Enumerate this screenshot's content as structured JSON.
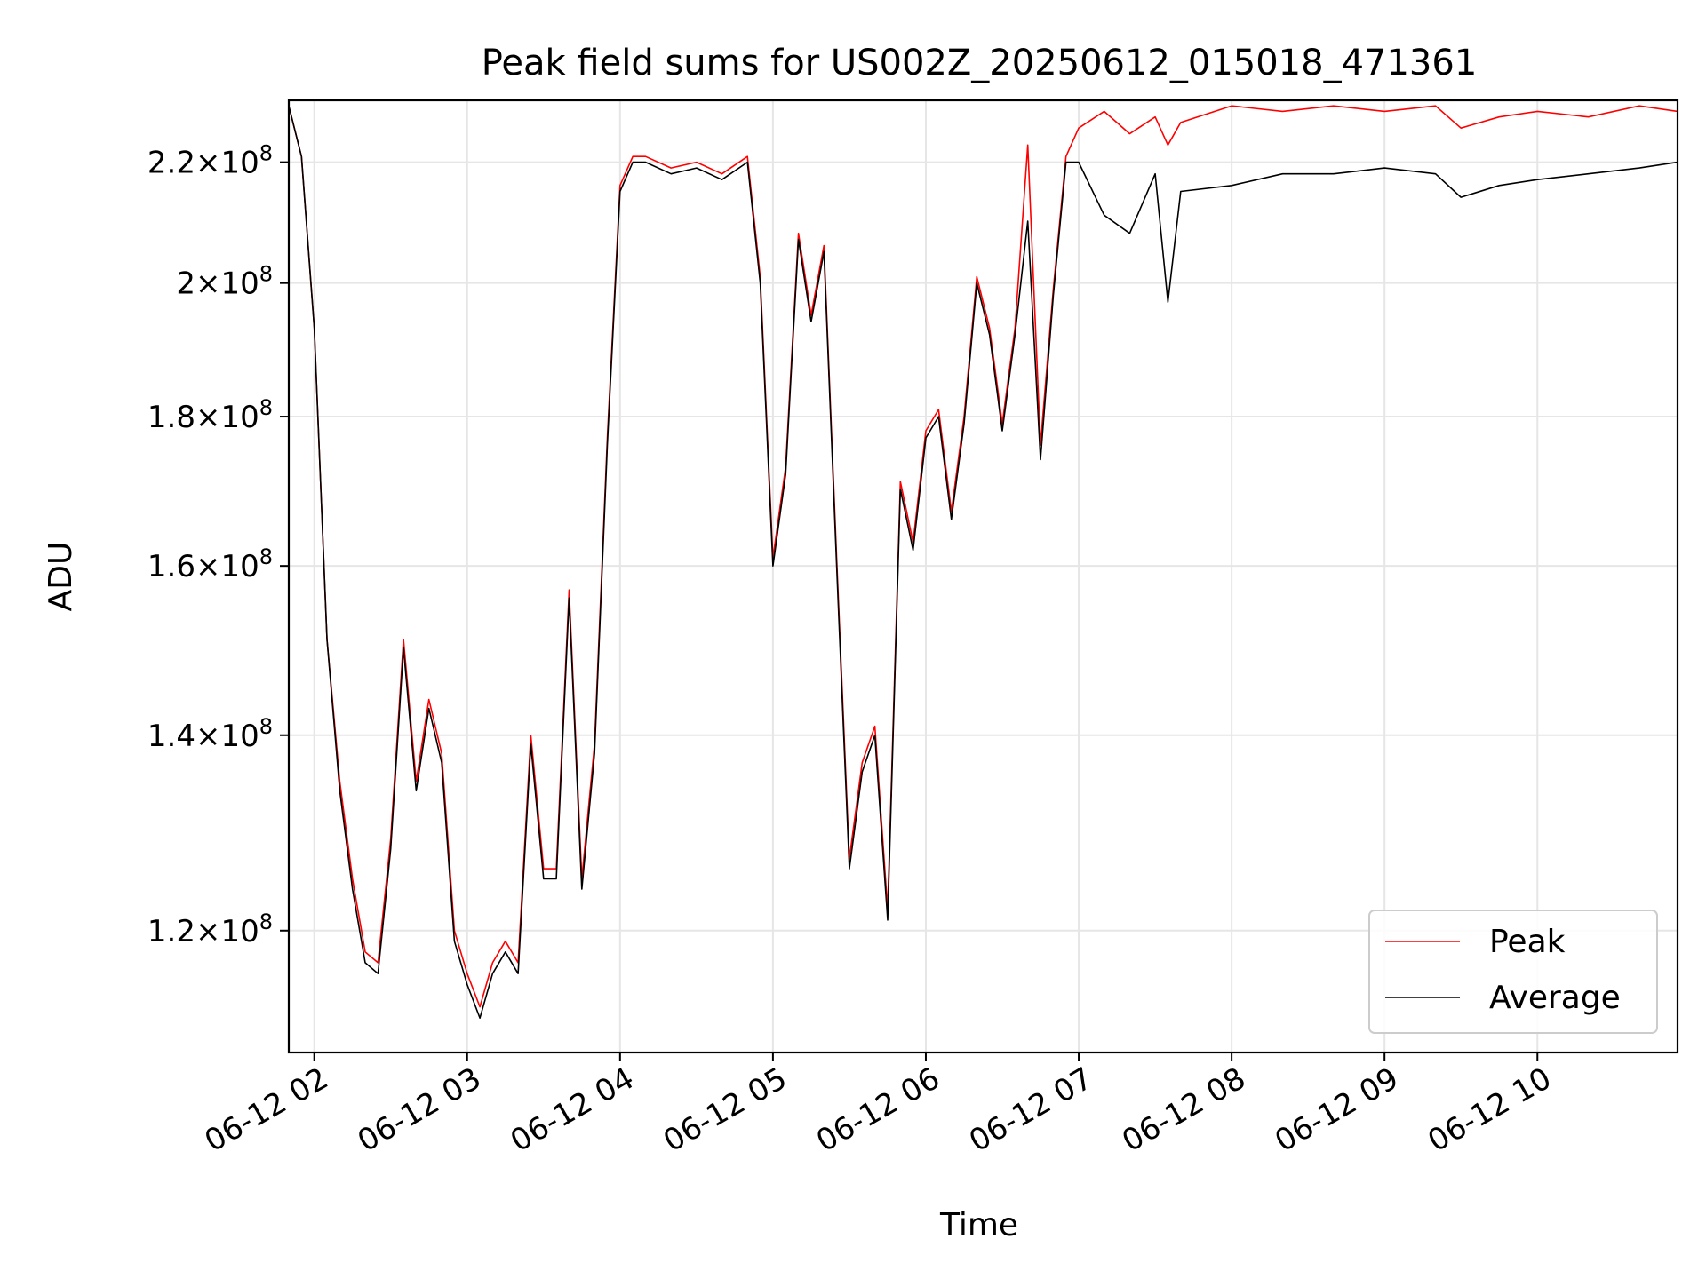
{
  "chart_data": {
    "type": "line",
    "title": "Peak field sums for US002Z_20250612_015018_471361",
    "xlabel": "Time",
    "ylabel": "ADU",
    "yscale": "log",
    "grid": true,
    "legend_position": "lower-right",
    "xlim": [
      "2025-06-12 01:50",
      "2025-06-12 10:55"
    ],
    "ylim": [
      109000000,
      231000000
    ],
    "x_ticks": [
      {
        "value": "2025-06-12 02:00",
        "label": "06-12 02"
      },
      {
        "value": "2025-06-12 03:00",
        "label": "06-12 03"
      },
      {
        "value": "2025-06-12 04:00",
        "label": "06-12 04"
      },
      {
        "value": "2025-06-12 05:00",
        "label": "06-12 05"
      },
      {
        "value": "2025-06-12 06:00",
        "label": "06-12 06"
      },
      {
        "value": "2025-06-12 07:00",
        "label": "06-12 07"
      },
      {
        "value": "2025-06-12 08:00",
        "label": "06-12 08"
      },
      {
        "value": "2025-06-12 09:00",
        "label": "06-12 09"
      },
      {
        "value": "2025-06-12 10:00",
        "label": "06-12 10"
      }
    ],
    "y_ticks": [
      {
        "value": 120000000,
        "mantissa": "1.2",
        "exponent": "8"
      },
      {
        "value": 140000000,
        "mantissa": "1.4",
        "exponent": "8"
      },
      {
        "value": 160000000,
        "mantissa": "1.6",
        "exponent": "8"
      },
      {
        "value": 180000000,
        "mantissa": "1.8",
        "exponent": "8"
      },
      {
        "value": 200000000,
        "mantissa": "2",
        "exponent": "8"
      },
      {
        "value": 220000000,
        "mantissa": "2.2",
        "exponent": "8"
      }
    ],
    "series": [
      {
        "name": "Average",
        "color": "#000000",
        "x": [
          "2025-06-12 01:50",
          "2025-06-12 01:55",
          "2025-06-12 02:00",
          "2025-06-12 02:05",
          "2025-06-12 02:10",
          "2025-06-12 02:15",
          "2025-06-12 02:20",
          "2025-06-12 02:25",
          "2025-06-12 02:30",
          "2025-06-12 02:35",
          "2025-06-12 02:40",
          "2025-06-12 02:45",
          "2025-06-12 02:50",
          "2025-06-12 02:55",
          "2025-06-12 03:00",
          "2025-06-12 03:05",
          "2025-06-12 03:10",
          "2025-06-12 03:15",
          "2025-06-12 03:20",
          "2025-06-12 03:25",
          "2025-06-12 03:30",
          "2025-06-12 03:35",
          "2025-06-12 03:40",
          "2025-06-12 03:45",
          "2025-06-12 03:50",
          "2025-06-12 03:55",
          "2025-06-12 04:00",
          "2025-06-12 04:05",
          "2025-06-12 04:10",
          "2025-06-12 04:20",
          "2025-06-12 04:30",
          "2025-06-12 04:40",
          "2025-06-12 04:50",
          "2025-06-12 04:55",
          "2025-06-12 05:00",
          "2025-06-12 05:05",
          "2025-06-12 05:10",
          "2025-06-12 05:15",
          "2025-06-12 05:20",
          "2025-06-12 05:25",
          "2025-06-12 05:30",
          "2025-06-12 05:35",
          "2025-06-12 05:40",
          "2025-06-12 05:45",
          "2025-06-12 05:50",
          "2025-06-12 05:55",
          "2025-06-12 06:00",
          "2025-06-12 06:05",
          "2025-06-12 06:10",
          "2025-06-12 06:15",
          "2025-06-12 06:20",
          "2025-06-12 06:25",
          "2025-06-12 06:30",
          "2025-06-12 06:35",
          "2025-06-12 06:40",
          "2025-06-12 06:45",
          "2025-06-12 06:50",
          "2025-06-12 06:55",
          "2025-06-12 07:00",
          "2025-06-12 07:10",
          "2025-06-12 07:20",
          "2025-06-12 07:30",
          "2025-06-12 07:35",
          "2025-06-12 07:40",
          "2025-06-12 08:00",
          "2025-06-12 08:20",
          "2025-06-12 08:40",
          "2025-06-12 09:00",
          "2025-06-12 09:20",
          "2025-06-12 09:30",
          "2025-06-12 09:45",
          "2025-06-12 10:00",
          "2025-06-12 10:20",
          "2025-06-12 10:40",
          "2025-06-12 10:55"
        ],
        "values": [
          230000000,
          221000000,
          193000000,
          151000000,
          134000000,
          124000000,
          117000000,
          116000000,
          128000000,
          150000000,
          134000000,
          143000000,
          137000000,
          119000000,
          115000000,
          112000000,
          116000000,
          118000000,
          116000000,
          139000000,
          125000000,
          125000000,
          156000000,
          124000000,
          138000000,
          176000000,
          215000000,
          220000000,
          220000000,
          218000000,
          219000000,
          217000000,
          220000000,
          200000000,
          160000000,
          172000000,
          207000000,
          194000000,
          205000000,
          160000000,
          126000000,
          136000000,
          140000000,
          121000000,
          170000000,
          162000000,
          177000000,
          180000000,
          166000000,
          179000000,
          200000000,
          192000000,
          178000000,
          192000000,
          210000000,
          174000000,
          198000000,
          220000000,
          220000000,
          211000000,
          208000000,
          218000000,
          197000000,
          215000000,
          216000000,
          218000000,
          218000000,
          219000000,
          218000000,
          214000000,
          216000000,
          217000000,
          218000000,
          219000000,
          220000000
        ]
      },
      {
        "name": "Peak",
        "color": "#ff0000",
        "x": [
          "2025-06-12 01:50",
          "2025-06-12 01:55",
          "2025-06-12 02:00",
          "2025-06-12 02:05",
          "2025-06-12 02:10",
          "2025-06-12 02:15",
          "2025-06-12 02:20",
          "2025-06-12 02:25",
          "2025-06-12 02:30",
          "2025-06-12 02:35",
          "2025-06-12 02:40",
          "2025-06-12 02:45",
          "2025-06-12 02:50",
          "2025-06-12 02:55",
          "2025-06-12 03:00",
          "2025-06-12 03:05",
          "2025-06-12 03:10",
          "2025-06-12 03:15",
          "2025-06-12 03:20",
          "2025-06-12 03:25",
          "2025-06-12 03:30",
          "2025-06-12 03:35",
          "2025-06-12 03:40",
          "2025-06-12 03:45",
          "2025-06-12 03:50",
          "2025-06-12 03:55",
          "2025-06-12 04:00",
          "2025-06-12 04:05",
          "2025-06-12 04:10",
          "2025-06-12 04:20",
          "2025-06-12 04:30",
          "2025-06-12 04:40",
          "2025-06-12 04:50",
          "2025-06-12 04:55",
          "2025-06-12 05:00",
          "2025-06-12 05:05",
          "2025-06-12 05:10",
          "2025-06-12 05:15",
          "2025-06-12 05:20",
          "2025-06-12 05:25",
          "2025-06-12 05:30",
          "2025-06-12 05:35",
          "2025-06-12 05:40",
          "2025-06-12 05:45",
          "2025-06-12 05:50",
          "2025-06-12 05:55",
          "2025-06-12 06:00",
          "2025-06-12 06:05",
          "2025-06-12 06:10",
          "2025-06-12 06:15",
          "2025-06-12 06:20",
          "2025-06-12 06:25",
          "2025-06-12 06:30",
          "2025-06-12 06:35",
          "2025-06-12 06:40",
          "2025-06-12 06:45",
          "2025-06-12 06:50",
          "2025-06-12 06:55",
          "2025-06-12 07:00",
          "2025-06-12 07:10",
          "2025-06-12 07:20",
          "2025-06-12 07:30",
          "2025-06-12 07:35",
          "2025-06-12 07:40",
          "2025-06-12 08:00",
          "2025-06-12 08:20",
          "2025-06-12 08:40",
          "2025-06-12 09:00",
          "2025-06-12 09:20",
          "2025-06-12 09:30",
          "2025-06-12 09:45",
          "2025-06-12 10:00",
          "2025-06-12 10:20",
          "2025-06-12 10:40",
          "2025-06-12 10:55"
        ],
        "values": [
          230000000,
          221000000,
          193000000,
          151000000,
          135000000,
          125000000,
          118000000,
          117000000,
          129000000,
          151000000,
          135000000,
          144000000,
          138000000,
          120000000,
          116000000,
          113000000,
          117000000,
          119000000,
          117000000,
          140000000,
          126000000,
          126000000,
          157000000,
          125000000,
          139000000,
          177000000,
          216000000,
          221000000,
          221000000,
          219000000,
          220000000,
          218000000,
          221000000,
          201000000,
          161000000,
          173000000,
          208000000,
          195000000,
          206000000,
          161000000,
          127000000,
          137000000,
          141000000,
          122000000,
          171000000,
          163000000,
          178000000,
          181000000,
          167000000,
          180000000,
          201000000,
          193000000,
          179000000,
          193000000,
          223000000,
          176000000,
          199000000,
          221000000,
          226000000,
          229000000,
          225000000,
          228000000,
          223000000,
          227000000,
          230000000,
          229000000,
          230000000,
          229000000,
          230000000,
          226000000,
          228000000,
          229000000,
          228000000,
          230000000,
          229000000
        ]
      }
    ]
  }
}
